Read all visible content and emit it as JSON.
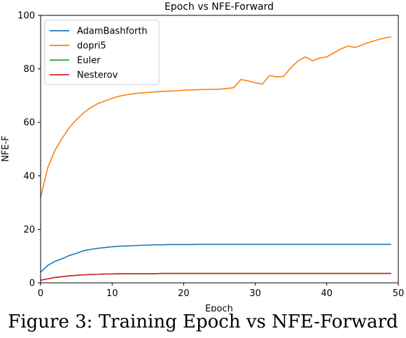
{
  "caption": "Figure 3: Training Epoch vs NFE-Forward",
  "chart_data": {
    "type": "line",
    "title": "Epoch vs NFE-Forward",
    "xlabel": "Epoch",
    "ylabel": "NFE-F",
    "xlim": [
      0,
      50
    ],
    "ylim": [
      0,
      100
    ],
    "xticks": [
      0,
      10,
      20,
      30,
      40,
      50
    ],
    "yticks": [
      0,
      20,
      40,
      60,
      80,
      100
    ],
    "grid": false,
    "legend": "top-left",
    "x": [
      0,
      1,
      2,
      3,
      4,
      5,
      6,
      7,
      8,
      9,
      10,
      11,
      12,
      13,
      14,
      15,
      16,
      17,
      18,
      19,
      20,
      21,
      22,
      23,
      24,
      25,
      26,
      27,
      28,
      29,
      30,
      31,
      32,
      33,
      34,
      35,
      36,
      37,
      38,
      39,
      40,
      41,
      42,
      43,
      44,
      45,
      46,
      47,
      48,
      49
    ],
    "series": [
      {
        "name": "AdamBashforth",
        "color": "#1f77b4",
        "values": [
          4,
          6.5,
          8,
          9,
          10.2,
          11,
          12,
          12.5,
          12.9,
          13.2,
          13.5,
          13.7,
          13.8,
          13.9,
          14,
          14.1,
          14.2,
          14.2,
          14.3,
          14.3,
          14.3,
          14.3,
          14.4,
          14.4,
          14.4,
          14.4,
          14.4,
          14.4,
          14.4,
          14.4,
          14.4,
          14.4,
          14.4,
          14.4,
          14.4,
          14.4,
          14.4,
          14.4,
          14.4,
          14.4,
          14.4,
          14.4,
          14.4,
          14.4,
          14.4,
          14.4,
          14.4,
          14.4,
          14.4,
          14.4
        ]
      },
      {
        "name": "dopri5",
        "color": "#ff7f0e",
        "values": [
          32,
          43,
          49.5,
          54,
          58,
          61,
          63.5,
          65.5,
          67,
          68,
          69,
          69.8,
          70.3,
          70.7,
          71,
          71.2,
          71.4,
          71.6,
          71.7,
          71.8,
          72,
          72.1,
          72.2,
          72.3,
          72.3,
          72.4,
          72.6,
          73,
          76,
          75.5,
          74.8,
          74.3,
          77.5,
          77,
          77.2,
          80.5,
          83,
          84.5,
          83,
          84,
          84.5,
          86,
          87.5,
          88.5,
          88,
          89,
          90,
          90.8,
          91.5,
          92
        ]
      },
      {
        "name": "Euler",
        "color": "#2ca02c",
        "values": [
          1,
          1.5,
          2,
          2.3,
          2.6,
          2.8,
          3,
          3.1,
          3.2,
          3.3,
          3.3,
          3.4,
          3.4,
          3.4,
          3.4,
          3.4,
          3.4,
          3.5,
          3.5,
          3.5,
          3.5,
          3.5,
          3.5,
          3.5,
          3.5,
          3.5,
          3.5,
          3.5,
          3.5,
          3.5,
          3.5,
          3.5,
          3.5,
          3.5,
          3.5,
          3.5,
          3.5,
          3.5,
          3.5,
          3.5,
          3.5,
          3.5,
          3.5,
          3.5,
          3.5,
          3.5,
          3.5,
          3.5,
          3.5,
          3.5
        ]
      },
      {
        "name": "Nesterov",
        "color": "#d62728",
        "values": [
          1,
          1.5,
          2,
          2.3,
          2.6,
          2.8,
          3,
          3.1,
          3.2,
          3.3,
          3.3,
          3.4,
          3.4,
          3.4,
          3.4,
          3.4,
          3.4,
          3.5,
          3.5,
          3.5,
          3.5,
          3.5,
          3.5,
          3.5,
          3.5,
          3.5,
          3.5,
          3.5,
          3.5,
          3.5,
          3.5,
          3.5,
          3.5,
          3.5,
          3.5,
          3.5,
          3.5,
          3.5,
          3.5,
          3.5,
          3.5,
          3.5,
          3.5,
          3.5,
          3.5,
          3.5,
          3.5,
          3.5,
          3.5,
          3.5
        ]
      }
    ]
  }
}
